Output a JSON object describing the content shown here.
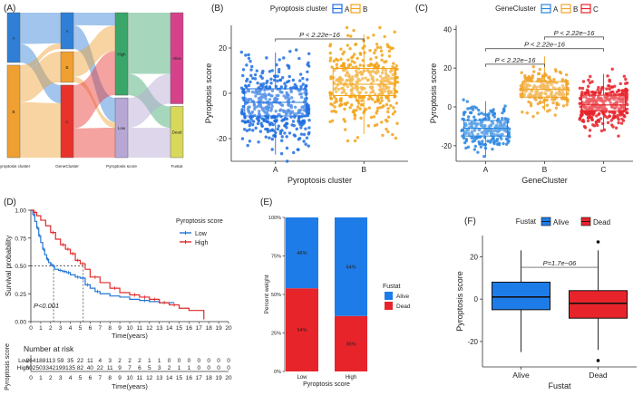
{
  "chart_data": [
    {
      "panel": "(A)",
      "type": "sankey",
      "axes": [
        "Pyroptosis cluster",
        "GeneCluster",
        "Pyroptosis score",
        "Fustat"
      ],
      "nodes": [
        {
          "axis": 0,
          "label": "A",
          "size": 0.35,
          "color": "#2f7fd6"
        },
        {
          "axis": 0,
          "label": "B",
          "size": 0.65,
          "color": "#f0a030"
        },
        {
          "axis": 1,
          "label": "A",
          "size": 0.26,
          "color": "#2f7fd6"
        },
        {
          "axis": 1,
          "label": "B",
          "size": 0.22,
          "color": "#f0a030"
        },
        {
          "axis": 1,
          "label": "C",
          "size": 0.52,
          "color": "#e8322c"
        },
        {
          "axis": 2,
          "label": "High",
          "size": 0.58,
          "color": "#3aa66a"
        },
        {
          "axis": 2,
          "label": "Low",
          "size": 0.42,
          "color": "#b6a7d4"
        },
        {
          "axis": 3,
          "label": "Alive",
          "size": 0.64,
          "color": "#d6428a"
        },
        {
          "axis": 3,
          "label": "Dead",
          "size": 0.36,
          "color": "#d8d85a"
        }
      ],
      "flows": [
        {
          "from": [
            0,
            0
          ],
          "to": [
            1,
            0
          ],
          "value": 0.22
        },
        {
          "from": [
            0,
            0
          ],
          "to": [
            1,
            2
          ],
          "value": 0.13
        },
        {
          "from": [
            0,
            1
          ],
          "to": [
            1,
            0
          ],
          "value": 0.04
        },
        {
          "from": [
            0,
            1
          ],
          "to": [
            1,
            1
          ],
          "value": 0.22
        },
        {
          "from": [
            0,
            1
          ],
          "to": [
            1,
            2
          ],
          "value": 0.39
        },
        {
          "from": [
            1,
            0
          ],
          "to": [
            2,
            0
          ],
          "value": 0.09
        },
        {
          "from": [
            1,
            0
          ],
          "to": [
            2,
            1
          ],
          "value": 0.17
        },
        {
          "from": [
            1,
            1
          ],
          "to": [
            2,
            0
          ],
          "value": 0.18
        },
        {
          "from": [
            1,
            1
          ],
          "to": [
            2,
            1
          ],
          "value": 0.04
        },
        {
          "from": [
            1,
            2
          ],
          "to": [
            2,
            0
          ],
          "value": 0.31
        },
        {
          "from": [
            1,
            2
          ],
          "to": [
            2,
            1
          ],
          "value": 0.21
        },
        {
          "from": [
            2,
            0
          ],
          "to": [
            3,
            0
          ],
          "value": 0.43
        },
        {
          "from": [
            2,
            0
          ],
          "to": [
            3,
            1
          ],
          "value": 0.15
        },
        {
          "from": [
            2,
            1
          ],
          "to": [
            3,
            0
          ],
          "value": 0.21
        },
        {
          "from": [
            2,
            1
          ],
          "to": [
            3,
            1
          ],
          "value": 0.21
        }
      ]
    },
    {
      "panel": "(B)",
      "type": "boxplot",
      "legend_title": "Pyroptosis cluster",
      "xlabel": "Pyroptosis cluster",
      "ylabel": "Pyroptosis score",
      "ylim": [
        -30,
        30
      ],
      "yticks": [
        -20,
        0,
        20
      ],
      "groups": [
        {
          "name": "A",
          "color": "#1f6fe0",
          "q1": -10,
          "median": -4,
          "q3": 2,
          "whisker_low": -27,
          "whisker_high": 18,
          "n": 450,
          "spread": 9
        },
        {
          "name": "B",
          "color": "#f2a317",
          "q1": -1,
          "median": 4,
          "q3": 11,
          "whisker_low": -18,
          "whisker_high": 26,
          "n": 400,
          "spread": 9
        }
      ],
      "annotations": [
        {
          "text": "P < 2.22e−16",
          "between": [
            0,
            1
          ],
          "y": 24
        }
      ]
    },
    {
      "panel": "(C)",
      "type": "boxplot",
      "legend_title": "GeneCluster",
      "xlabel": "GeneCluster",
      "ylabel": "Pyroptosis score",
      "ylim": [
        -28,
        42
      ],
      "yticks": [
        -20,
        0,
        20,
        40
      ],
      "groups": [
        {
          "name": "A",
          "color": "#2a86e0",
          "q1": -15,
          "median": -11,
          "q3": -7,
          "whisker_low": -26,
          "whisker_high": 3,
          "n": 230,
          "spread": 5
        },
        {
          "name": "B",
          "color": "#f0a52b",
          "q1": 5,
          "median": 9,
          "q3": 13,
          "whisker_low": -2,
          "whisker_high": 26,
          "n": 220,
          "spread": 5
        },
        {
          "name": "C",
          "color": "#e8232b",
          "q1": -2,
          "median": 1,
          "q3": 6,
          "whisker_low": -12,
          "whisker_high": 17,
          "n": 330,
          "spread": 6
        }
      ],
      "annotations": [
        {
          "text": "P < 2.22e−16",
          "between": [
            1,
            2
          ],
          "y": 36
        },
        {
          "text": "P < 2.22e−16",
          "between": [
            0,
            2
          ],
          "y": 30
        },
        {
          "text": "P < 2.22e−16",
          "between": [
            0,
            1
          ],
          "y": 22
        }
      ]
    },
    {
      "panel": "(D)",
      "type": "line",
      "subtype": "kaplan-meier",
      "legend_title": "Pyroptosis score",
      "xlabel": "Time(years)",
      "ylabel": "Survival probability",
      "xlim": [
        0,
        20
      ],
      "ylim": [
        0,
        1
      ],
      "xticks": [
        0,
        1,
        2,
        3,
        4,
        5,
        6,
        7,
        8,
        9,
        10,
        11,
        12,
        13,
        14,
        15,
        16,
        17,
        18,
        19,
        20
      ],
      "yticks": [
        0,
        0.25,
        0.5,
        0.75,
        1
      ],
      "ytick_labels": [
        "0.00",
        "0.25",
        "0.50",
        "0.75",
        "1.00"
      ],
      "pvalue": "P<0.001",
      "median_lines": [
        2.3,
        5.3
      ],
      "series": [
        {
          "name": "Low",
          "color": "#2476d6",
          "x": [
            0,
            0.2,
            0.4,
            0.6,
            0.8,
            1.0,
            1.2,
            1.4,
            1.6,
            1.8,
            2.0,
            2.2,
            2.4,
            2.8,
            3.2,
            3.6,
            4.0,
            4.5,
            5.0,
            5.5,
            6.0,
            6.5,
            7.0,
            8.0,
            9.0,
            10.0,
            11.0,
            12.0,
            13.0,
            14.0,
            14.5
          ],
          "y": [
            1,
            0.96,
            0.9,
            0.84,
            0.77,
            0.71,
            0.65,
            0.6,
            0.56,
            0.53,
            0.51,
            0.5,
            0.47,
            0.46,
            0.45,
            0.44,
            0.42,
            0.4,
            0.39,
            0.33,
            0.3,
            0.27,
            0.25,
            0.23,
            0.22,
            0.2,
            0.19,
            0.18,
            0.17,
            0.17,
            0.17
          ]
        },
        {
          "name": "High",
          "color": "#e02b2b",
          "x": [
            0,
            0.3,
            0.6,
            1.0,
            1.5,
            2.0,
            2.5,
            3.0,
            3.5,
            4.0,
            4.5,
            5.0,
            5.5,
            6.0,
            7.0,
            8.0,
            9.0,
            10.0,
            11.0,
            12.0,
            13.0,
            14.0,
            15.0,
            16.0,
            17.0,
            17.5
          ],
          "y": [
            1,
            0.98,
            0.95,
            0.91,
            0.86,
            0.8,
            0.74,
            0.69,
            0.65,
            0.61,
            0.55,
            0.52,
            0.47,
            0.4,
            0.35,
            0.3,
            0.26,
            0.24,
            0.22,
            0.2,
            0.17,
            0.15,
            0.12,
            0.1,
            0.1,
            0.02
          ]
        }
      ]
    },
    {
      "panel": "(D) risk table",
      "type": "table",
      "title": "Number at risk",
      "ylabel": "Pyroptosis score",
      "xlabel": "Time(years)",
      "xticks": [
        0,
        1,
        2,
        3,
        4,
        5,
        6,
        7,
        8,
        9,
        10,
        11,
        12,
        13,
        14,
        15,
        16,
        17,
        18,
        19,
        20
      ],
      "rows": [
        {
          "name": "Low",
          "color": "#2476d6",
          "values": [
            264,
            188,
            113,
            59,
            35,
            22,
            11,
            4,
            3,
            2,
            2,
            2,
            1,
            1,
            0,
            0,
            0,
            0,
            0,
            0,
            0
          ]
        },
        {
          "name": "High",
          "color": "#e02b2b",
          "values": [
            602,
            503,
            342,
            199,
            135,
            82,
            40,
            22,
            11,
            9,
            7,
            6,
            5,
            3,
            2,
            1,
            1,
            0,
            0,
            0,
            0
          ]
        }
      ]
    },
    {
      "panel": "(E)",
      "type": "bar",
      "subtype": "stacked-percent",
      "legend_title": "Fustat",
      "xlabel": "Pyroptosis score",
      "ylabel": "Percent weight",
      "categories": [
        "Low",
        "High"
      ],
      "yticks": [
        0,
        0.25,
        0.5,
        0.75,
        1
      ],
      "ytick_labels": [
        "0%",
        "25%",
        "50%",
        "75%",
        "100%"
      ],
      "series": [
        {
          "name": "Dead",
          "color": "#e8242b",
          "values": [
            0.54,
            0.36
          ],
          "labels": [
            "54%",
            "36%"
          ]
        },
        {
          "name": "Alive",
          "color": "#1e7ce8",
          "values": [
            0.46,
            0.64
          ],
          "labels": [
            "46%",
            "64%"
          ]
        }
      ]
    },
    {
      "panel": "(F)",
      "type": "boxplot",
      "legend_title": "Fustat",
      "xlabel": "Fustat",
      "ylabel": "Pyroptosis score",
      "ylim": [
        -32,
        30
      ],
      "yticks": [
        -20,
        0,
        20
      ],
      "groups": [
        {
          "name": "Alive",
          "color": "#1e7ce8",
          "q1": -5,
          "median": 1,
          "q3": 8,
          "whisker_low": -25,
          "whisker_high": 23,
          "outliers": []
        },
        {
          "name": "Dead",
          "color": "#e8242b",
          "q1": -9,
          "median": -2,
          "q3": 4,
          "whisker_low": -24,
          "whisker_high": 23,
          "outliers": [
            27,
            -29
          ]
        }
      ],
      "annotations": [
        {
          "text": "P=1.7e−06",
          "between": [
            0,
            1
          ],
          "y": 15
        }
      ]
    }
  ]
}
